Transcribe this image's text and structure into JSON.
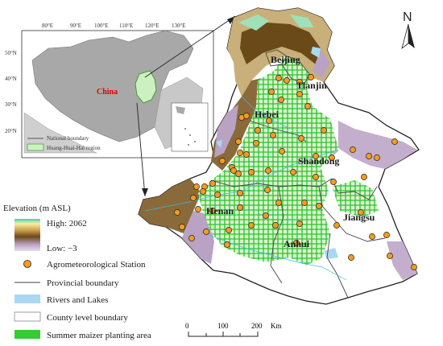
{
  "inset": {
    "lon_ticks": [
      "80°E",
      "90°E",
      "100°E",
      "110°E",
      "120°E",
      "130°E"
    ],
    "lat_ticks": [
      "50°N",
      "40°N",
      "30°N",
      "20°N"
    ],
    "country_label": "China",
    "legend": {
      "national_boundary": "National boundary",
      "region": "Huang-Huai-Hai region"
    }
  },
  "provinces": [
    "Beijing",
    "Tianjin",
    "Hebei",
    "Shandong",
    "Henan",
    "Jiangsu",
    "Anhui"
  ],
  "north_arrow": "N",
  "legend": {
    "elevation_title": "Elevation (m ASL)",
    "high": "High: 2062",
    "low": "Low: −3",
    "station": "Agrometeorological Station",
    "provincial": "Provincial boundary",
    "rivers": "Rivers and Lakes",
    "county": "County level boundary",
    "maize": "Summer maizer planting area"
  },
  "scale": {
    "labels": [
      "0",
      "100",
      "200"
    ],
    "unit": "Km"
  },
  "colors": {
    "station": "#f39c1e",
    "maize": "#33cc33",
    "water": "#a9d8f2",
    "lowland": "#ffffff",
    "mountain_brown": "#7a5520",
    "mountain_purple": "#b49ab8",
    "region_green": "#ccf0c0"
  }
}
